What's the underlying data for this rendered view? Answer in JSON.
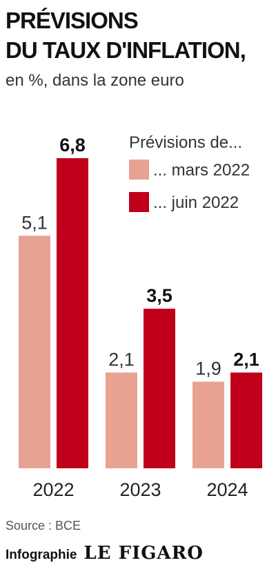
{
  "header": {
    "title_line1": "PRÉVISIONS",
    "title_line2": "DU TAUX D'INFLATION,",
    "subtitle": "en %, dans la zone euro"
  },
  "legend": {
    "title": "Prévisions de...",
    "items": [
      "... mars 2022",
      "... juin 2022"
    ]
  },
  "footer": {
    "source": "Source : BCE",
    "credit_label": "Infographie",
    "brand": "LE FIGARO"
  },
  "colors": {
    "mars": "#e8a292",
    "juin": "#c0001a"
  },
  "chart_data": {
    "type": "bar",
    "categories": [
      "2022",
      "2023",
      "2024"
    ],
    "series": [
      {
        "name": "... mars 2022",
        "values": [
          5.1,
          2.1,
          1.9
        ],
        "labels": [
          "5,1",
          "2,1",
          "1,9"
        ]
      },
      {
        "name": "... juin 2022",
        "values": [
          6.8,
          3.5,
          2.1
        ],
        "labels": [
          "6,8",
          "3,5",
          "2,1"
        ]
      }
    ],
    "title": "PRÉVISIONS DU TAUX D'INFLATION,",
    "subtitle": "en %, dans la zone euro",
    "legend_title": "Prévisions de...",
    "legend_position": "top-right",
    "ylim": [
      0,
      6.8
    ],
    "grid": false
  }
}
